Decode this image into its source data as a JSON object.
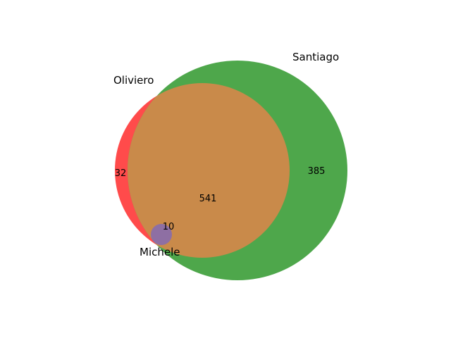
{
  "sets": [
    {
      "name": "Oliviero",
      "color": "#ff4b4b"
    },
    {
      "name": "Santiago",
      "color": "#4ea74b"
    },
    {
      "name": "Michele",
      "color": "#8e6fa3"
    }
  ],
  "overlap_color": "#c98a4a",
  "regions": {
    "oliviero_only": "32",
    "santiago_only": "385",
    "oliviero_santiago": "541",
    "oliviero_michele": "10"
  }
}
